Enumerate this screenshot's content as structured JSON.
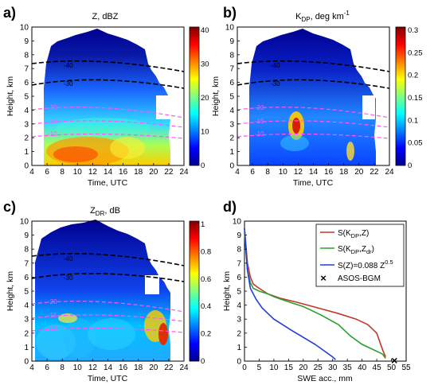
{
  "panels": [
    {
      "letter": "a)",
      "title": "Z, dBZ",
      "colorbar": {
        "ticks": [
          "40",
          "30",
          "20",
          "10",
          "0"
        ]
      },
      "contour_labels": [
        "-40",
        "-30",
        "-20",
        "-15",
        "-10"
      ]
    },
    {
      "letter": "b)",
      "title_main": "K",
      "title_sub": "DP",
      "title_tail": ", deg km",
      "title_sup": "-1",
      "colorbar": {
        "ticks": [
          "0.3",
          "0.25",
          "0.2",
          "0.15",
          "0.1",
          "0.05",
          "0"
        ]
      },
      "contour_labels": [
        "-40",
        "-30",
        "-20",
        "-15",
        "-10"
      ]
    },
    {
      "letter": "c)",
      "title_main": "Z",
      "title_sub": "DR",
      "title_tail": ", dB",
      "colorbar": {
        "ticks": [
          "1",
          "0.8",
          "0.6",
          "0.4",
          "0.2",
          "0"
        ]
      },
      "contour_labels": [
        "-40",
        "-30",
        "-20",
        "-15",
        "-10"
      ]
    },
    {
      "letter": "d)"
    }
  ],
  "axes": {
    "time_label": "Time, UTC",
    "height_label": "Height, km",
    "swe_label": "SWE acc., mm",
    "time_ticks": [
      "4",
      "6",
      "8",
      "10",
      "12",
      "14",
      "16",
      "18",
      "20",
      "22",
      "24"
    ],
    "height_ticks": [
      "0",
      "1",
      "2",
      "3",
      "4",
      "5",
      "6",
      "7",
      "8",
      "9",
      "10"
    ],
    "swe_ticks": [
      "0",
      "5",
      "10",
      "15",
      "20",
      "25",
      "30",
      "35",
      "40",
      "45",
      "50",
      "55"
    ]
  },
  "legend": {
    "kdp_z": {
      "prefix": "S(K",
      "sub": "DP",
      "suffix": ",Z)"
    },
    "kdp_zdr": {
      "prefix": "S(K",
      "sub1": "DP",
      "mid": ",Z",
      "sub2": "dr",
      "suffix": ")"
    },
    "z_power": {
      "text": "S(Z)=0.088 Z",
      "sup": "0.5"
    },
    "asos": {
      "text": "ASOS-BGM"
    }
  },
  "chart_data": [
    {
      "type": "heatmap",
      "title": "Z, dBZ",
      "xlabel": "Time, UTC",
      "ylabel": "Height, km",
      "xlim": [
        4,
        24
      ],
      "ylim": [
        0,
        10
      ],
      "colorbar_range": [
        0,
        40
      ],
      "isotherm_labels": [
        -40,
        -30,
        -20,
        -15,
        -10
      ]
    },
    {
      "type": "heatmap",
      "title": "KDP, deg km-1",
      "xlabel": "Time, UTC",
      "ylabel": "Height, km",
      "xlim": [
        4,
        24
      ],
      "ylim": [
        0,
        10
      ],
      "colorbar_range": [
        0,
        0.3
      ]
    },
    {
      "type": "heatmap",
      "title": "ZDR, dB",
      "xlabel": "Time, UTC",
      "ylabel": "Height, km",
      "xlim": [
        4,
        24
      ],
      "ylim": [
        0,
        10
      ],
      "colorbar_range": [
        0,
        1
      ]
    },
    {
      "type": "line",
      "xlabel": "SWE acc., mm",
      "ylabel": "Height, km",
      "xlim": [
        0,
        55
      ],
      "ylim": [
        0,
        10
      ],
      "series": [
        {
          "name": "S(KDP,Z)",
          "color": "#c0392b",
          "x": [
            0,
            1,
            2,
            3,
            5,
            8,
            12,
            18,
            25,
            32,
            38,
            42,
            45,
            46,
            47,
            48
          ],
          "y": [
            9.5,
            7,
            6,
            5.5,
            5.2,
            4.8,
            4.5,
            4.2,
            3.8,
            3.4,
            3,
            2.6,
            2,
            1.4,
            0.8,
            0.3
          ]
        },
        {
          "name": "S(KDP,Zdr)",
          "color": "#2ca02c",
          "x": [
            0,
            1,
            2,
            3,
            5,
            8,
            10,
            14,
            20,
            26,
            32,
            36,
            40,
            44,
            47,
            48
          ],
          "y": [
            9.2,
            6.5,
            5.6,
            5.2,
            5,
            4.8,
            4.6,
            4.3,
            3.9,
            3.3,
            2.6,
            1.8,
            1.2,
            0.8,
            0.5,
            0.2
          ]
        },
        {
          "name": "S(Z)=0.088 Z^0.5",
          "color": "#1f3fd6",
          "x": [
            0,
            1,
            2,
            4,
            6,
            8,
            10,
            13,
            16,
            20,
            24,
            28,
            30,
            31
          ],
          "y": [
            9.5,
            6.5,
            5.2,
            4.4,
            3.8,
            3.4,
            3,
            2.6,
            2.2,
            1.7,
            1.2,
            0.6,
            0.3,
            0.1
          ]
        }
      ],
      "markers": [
        {
          "name": "ASOS-BGM",
          "x": 51,
          "y": 0
        }
      ]
    }
  ]
}
